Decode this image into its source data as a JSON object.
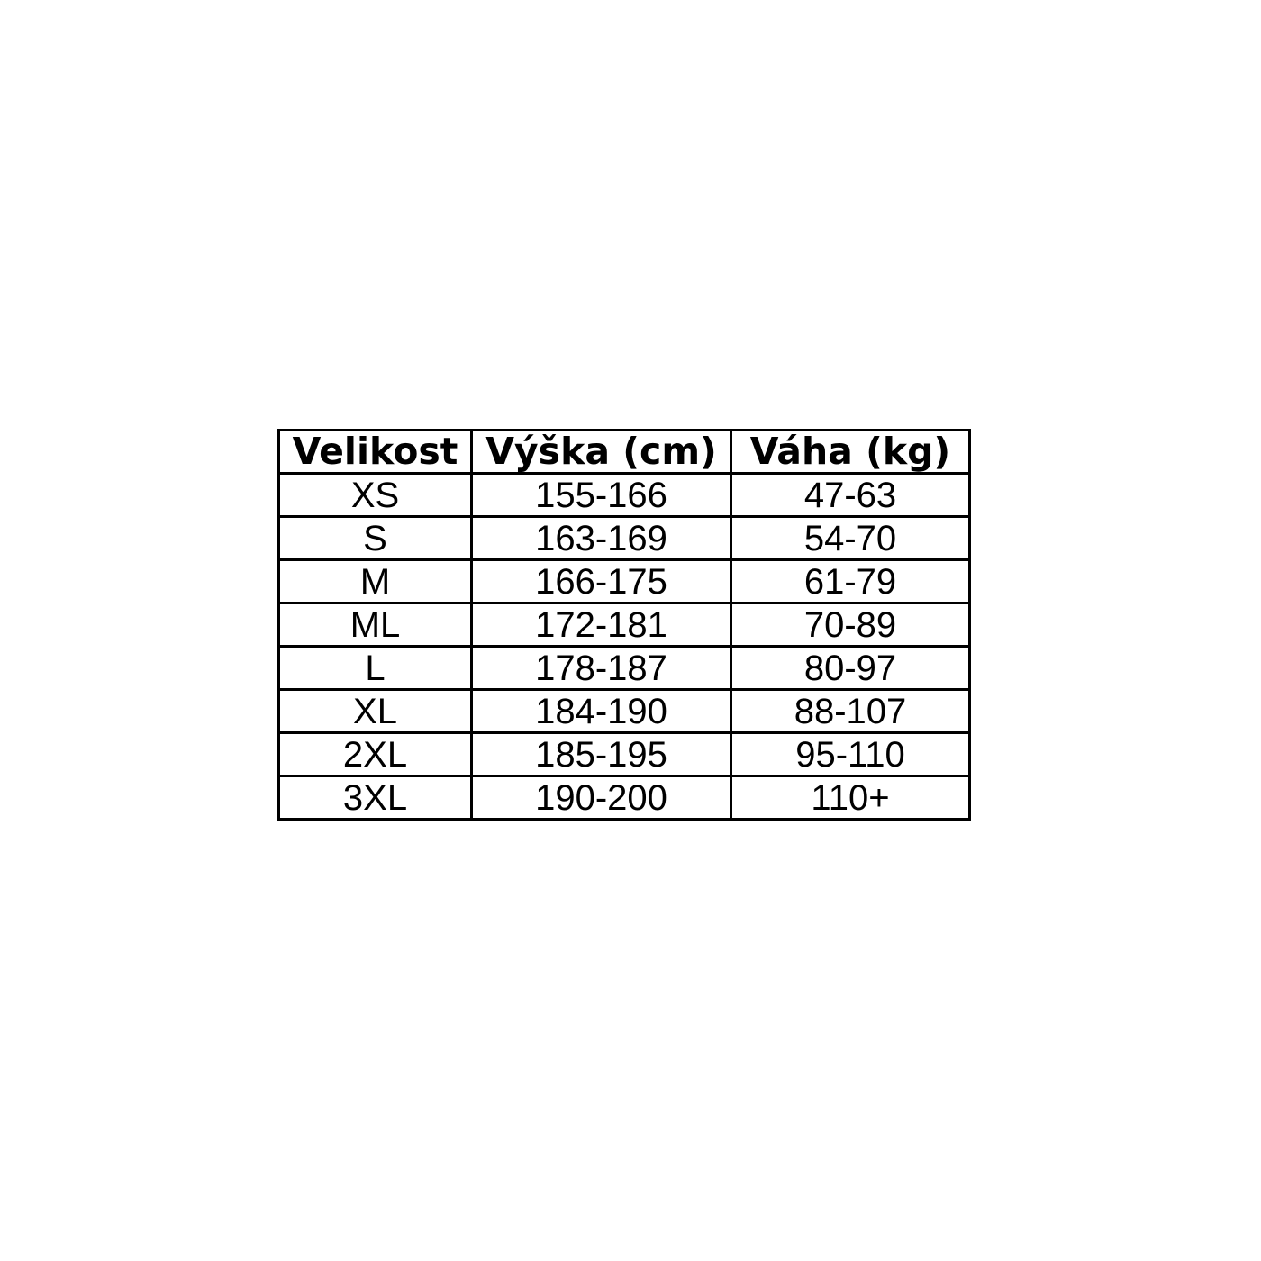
{
  "chart_data": {
    "type": "table",
    "title": "",
    "columns": [
      "Velikost",
      "Výška (cm)",
      "Váha (kg)"
    ],
    "rows": [
      [
        "XS",
        "155-166",
        "47-63"
      ],
      [
        "S",
        "163-169",
        "54-70"
      ],
      [
        "M",
        "166-175",
        "61-79"
      ],
      [
        "ML",
        "172-181",
        "70-89"
      ],
      [
        "L",
        "178-187",
        "80-97"
      ],
      [
        "XL",
        "184-190",
        "88-107"
      ],
      [
        "2XL",
        "185-195",
        "95-110"
      ],
      [
        "3XL",
        "190-200",
        "110+"
      ]
    ],
    "layout": {
      "border_color": "#000000",
      "background": "#ffffff",
      "text_color": "#000000",
      "header_bold": true,
      "grid": "all-cells"
    }
  },
  "table": {
    "headers": {
      "size": "Velikost",
      "height_cm": "Výška (cm)",
      "weight_kg": "Váha (kg)"
    },
    "rows": [
      {
        "size": "XS",
        "height": "155-166",
        "weight": "47-63"
      },
      {
        "size": "S",
        "height": "163-169",
        "weight": "54-70"
      },
      {
        "size": "M",
        "height": "166-175",
        "weight": "61-79"
      },
      {
        "size": "ML",
        "height": "172-181",
        "weight": "70-89"
      },
      {
        "size": "L",
        "height": "178-187",
        "weight": "80-97"
      },
      {
        "size": "XL",
        "height": "184-190",
        "weight": "88-107"
      },
      {
        "size": "2XL",
        "height": "185-195",
        "weight": "95-110"
      },
      {
        "size": "3XL",
        "height": "190-200",
        "weight": "110+"
      }
    ]
  }
}
